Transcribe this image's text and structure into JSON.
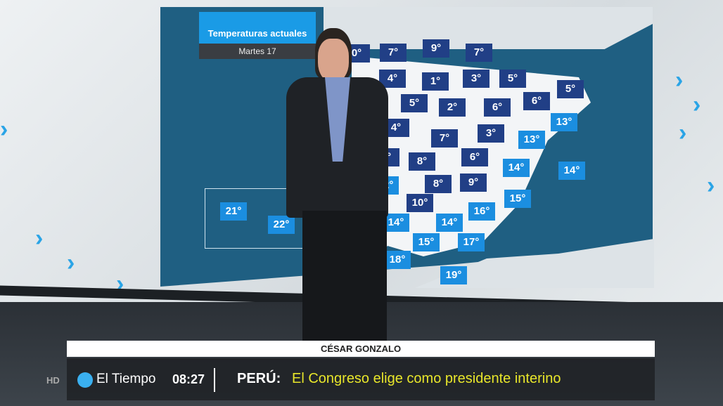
{
  "graphic": {
    "title": "Temperaturas actuales",
    "subtitle": "Martes 17"
  },
  "temperatures": [
    {
      "v": "0°",
      "style": "dark"
    },
    {
      "v": "7°",
      "style": "dark"
    },
    {
      "v": "9°",
      "style": "dark"
    },
    {
      "v": "7°",
      "style": "dark"
    },
    {
      "v": "4°",
      "style": "dark"
    },
    {
      "v": "1°",
      "style": "dark"
    },
    {
      "v": "3°",
      "style": "dark"
    },
    {
      "v": "5°",
      "style": "dark"
    },
    {
      "v": "5°",
      "style": "dark"
    },
    {
      "v": "5°",
      "style": "dark"
    },
    {
      "v": "2°",
      "style": "dark"
    },
    {
      "v": "6°",
      "style": "dark"
    },
    {
      "v": "6°",
      "style": "dark"
    },
    {
      "v": "13°",
      "style": "light"
    },
    {
      "v": "4°",
      "style": "dark"
    },
    {
      "v": "7°",
      "style": "dark"
    },
    {
      "v": "3°",
      "style": "dark"
    },
    {
      "v": "13°",
      "style": "light"
    },
    {
      "v": "9°",
      "style": "dark"
    },
    {
      "v": "8°",
      "style": "dark"
    },
    {
      "v": "6°",
      "style": "dark"
    },
    {
      "v": "14°",
      "style": "light"
    },
    {
      "v": "14°",
      "style": "light"
    },
    {
      "v": "12°",
      "style": "light"
    },
    {
      "v": "8°",
      "style": "dark"
    },
    {
      "v": "9°",
      "style": "dark"
    },
    {
      "v": "15°",
      "style": "light"
    },
    {
      "v": "10°",
      "style": "dark"
    },
    {
      "v": "16°",
      "style": "light"
    },
    {
      "v": "14°",
      "style": "light"
    },
    {
      "v": "14°",
      "style": "light"
    },
    {
      "v": "15°",
      "style": "light"
    },
    {
      "v": "17°",
      "style": "light"
    },
    {
      "v": "18°",
      "style": "light"
    },
    {
      "v": "19°",
      "style": "light"
    },
    {
      "v": "21°",
      "style": "light"
    },
    {
      "v": "22°",
      "style": "light"
    }
  ],
  "colors": {
    "dark_badge": "#213f86",
    "light_badge": "#1b8ee0",
    "sea": "#1f5f82",
    "headline": "#e8e62a"
  },
  "lower_third": {
    "presenter": "CÉSAR GONZALO",
    "hd": "HD",
    "program": "El Tiempo",
    "time": "08:27",
    "tag": "PERÚ:",
    "headline": "El Congreso elige como presidente interino"
  }
}
